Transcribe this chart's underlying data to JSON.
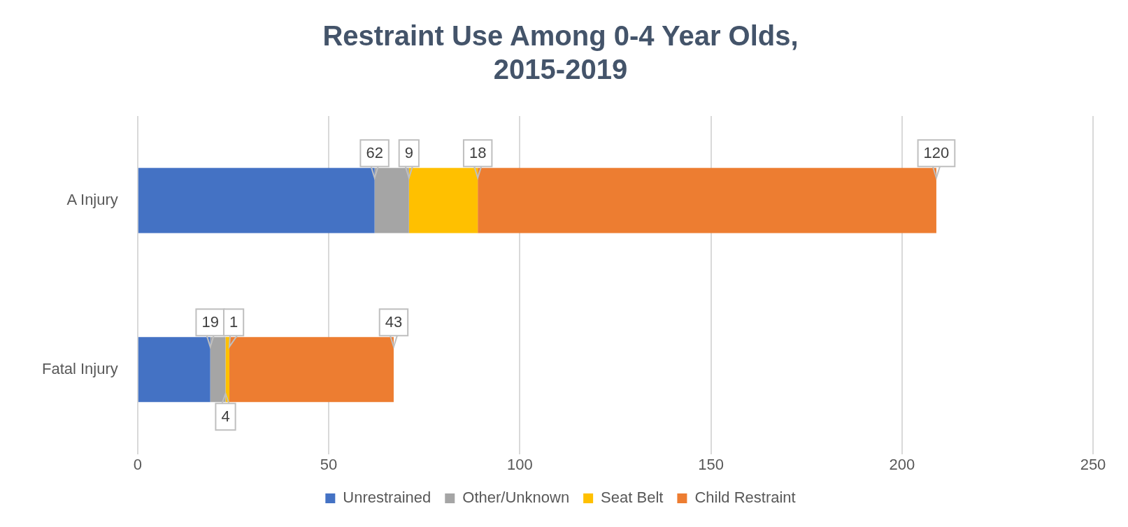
{
  "chart_data": {
    "type": "bar",
    "orientation": "horizontal",
    "stacked": true,
    "title": "Restraint Use Among 0-4 Year Olds,\n2015-2019",
    "categories": [
      "A Injury",
      "Fatal Injury"
    ],
    "series": [
      {
        "name": "Unrestrained",
        "color": "#4472c4",
        "values": [
          62,
          19
        ]
      },
      {
        "name": "Other/Unknown",
        "color": "#a5a5a5",
        "values": [
          9,
          4
        ]
      },
      {
        "name": "Seat Belt",
        "color": "#ffc000",
        "values": [
          18,
          1
        ]
      },
      {
        "name": "Child Restraint",
        "color": "#ed7d31",
        "values": [
          120,
          43
        ]
      }
    ],
    "xlim": [
      0,
      250
    ],
    "xticks": [
      0,
      50,
      100,
      150,
      200,
      250
    ],
    "grid": "x",
    "legend": "bottom",
    "data_labels": true
  }
}
